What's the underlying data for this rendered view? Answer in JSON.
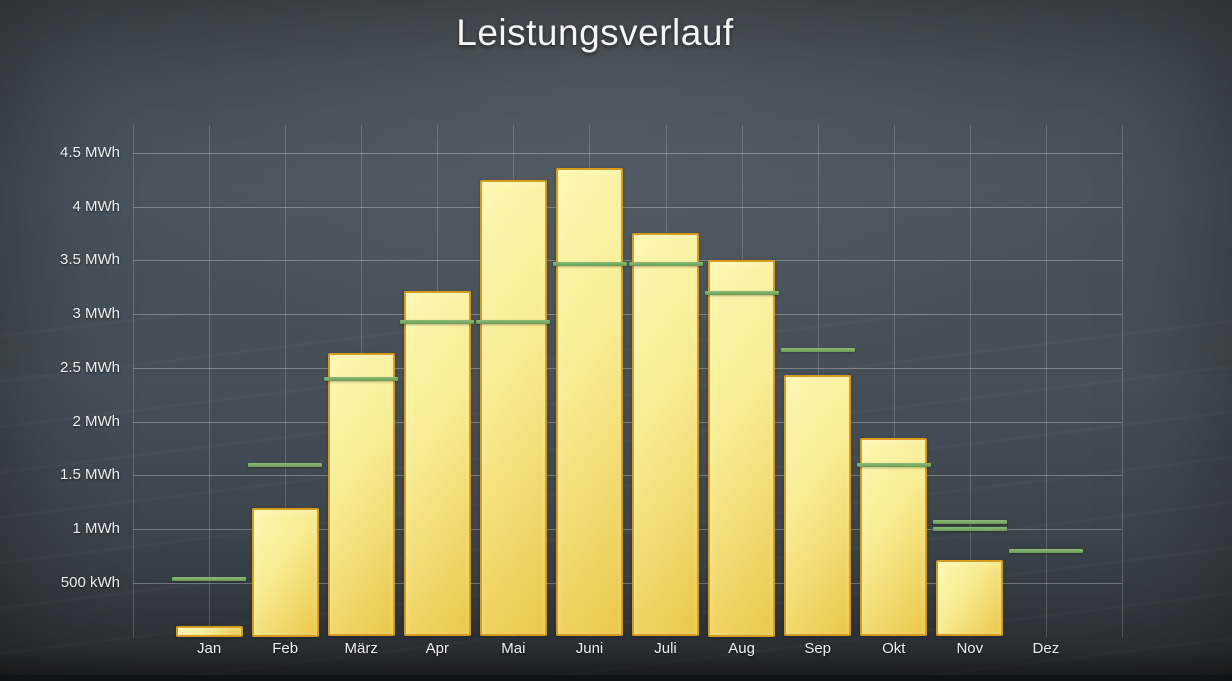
{
  "chart_data": {
    "type": "bar",
    "title": "Leistungsverlauf",
    "unit": "MWh",
    "categories": [
      "Jan",
      "Feb",
      "März",
      "Apr",
      "Mai",
      "Juni",
      "Juli",
      "Aug",
      "Sep",
      "Okt",
      "Nov",
      "Dez"
    ],
    "bar_values_mwh": [
      0.1,
      1.2,
      2.64,
      3.21,
      4.25,
      4.36,
      3.75,
      3.5,
      2.43,
      1.85,
      0.71,
      0
    ],
    "marker_values_mwh": [
      [
        0.54
      ],
      [
        1.6
      ],
      [
        2.4
      ],
      [
        2.93
      ],
      [
        2.93
      ],
      [
        3.47
      ],
      [
        3.47
      ],
      [
        3.2
      ],
      [
        2.67
      ],
      [
        1.6
      ],
      [
        1.07,
        1.0
      ],
      [
        0.8
      ]
    ],
    "y_ticks": [
      {
        "value": 0.5,
        "label": "500 kWh"
      },
      {
        "value": 1.0,
        "label": "1 MWh"
      },
      {
        "value": 1.5,
        "label": "1.5 MWh"
      },
      {
        "value": 2.0,
        "label": "2 MWh"
      },
      {
        "value": 2.5,
        "label": "2.5 MWh"
      },
      {
        "value": 3.0,
        "label": "3 MWh"
      },
      {
        "value": 3.5,
        "label": "3.5 MWh"
      },
      {
        "value": 4.0,
        "label": "4 MWh"
      },
      {
        "value": 4.5,
        "label": "4.5 MWh"
      }
    ],
    "ylim": [
      0,
      4.75
    ],
    "grid": true,
    "legend": "none",
    "colors": {
      "background": "#49525A",
      "bar_fill_light": "#FCF7B2",
      "bar_fill_dark": "#EAC74B",
      "bar_border": "#D79C1E",
      "marker_green": "#7CAF68",
      "grid_line": "#E4EBF0",
      "text": "#EDF0F2"
    }
  }
}
